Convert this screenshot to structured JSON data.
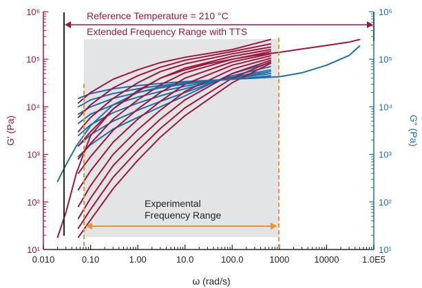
{
  "chart_data": {
    "type": "line",
    "xlabel": "ω (rad/s)",
    "ylabel_left": "G' (Pa)",
    "ylabel_right": "G\" (Pa)",
    "x_log": true,
    "y_log": true,
    "xlim": [
      0.01,
      100000
    ],
    "ylim": [
      10,
      1000000
    ],
    "x_ticks": [
      0.01,
      0.1,
      1,
      10,
      100,
      1000,
      10000,
      100000
    ],
    "x_tick_labels": [
      "0.010",
      "0.10",
      "1.00",
      "10.0",
      "100.0",
      "1000",
      "10000",
      "1.0E5"
    ],
    "y_ticks": [
      10,
      100,
      1000,
      10000,
      100000,
      1000000
    ],
    "y_tick_labels_left": [
      "10¹",
      "10²",
      "10³",
      "10⁴",
      "10⁵",
      "10⁶"
    ],
    "y_tick_labels_right": [
      "10¹",
      "10²",
      "10³",
      "10⁴",
      "10⁵",
      "10⁶"
    ],
    "annotations": {
      "reference_temp": "Reference Temperature = 210 °C",
      "extended_range": "Extended Frequency Range with TTS",
      "experimental_range_line1": "Experimental",
      "experimental_range_line2": "Frequency Range"
    },
    "extended_range_omega": [
      0.02,
      50000
    ],
    "experimental_range_omega": [
      0.055,
      650
    ],
    "colors": {
      "gprime": "#a0153e",
      "gdoubleprime": "#1f6fa8",
      "shaded": "#e3e4e6",
      "orange": "#f0922e",
      "extended_arrow": "#a0153e",
      "axis": "#222222"
    },
    "master_curves": [
      {
        "name": "G' master curve",
        "x": [
          0.02,
          0.03,
          0.05,
          0.1,
          0.3,
          1,
          3,
          10,
          30,
          100,
          300,
          1000,
          3000,
          10000,
          30000,
          50000
        ],
        "y": [
          18,
          60,
          400,
          2500,
          9000,
          22000,
          40000,
          60000,
          80000,
          100000,
          120000,
          140000,
          165000,
          195000,
          230000,
          260000
        ]
      },
      {
        "name": "G\" master curve",
        "x": [
          0.02,
          0.03,
          0.05,
          0.1,
          0.3,
          1,
          3,
          10,
          30,
          100,
          300,
          1000,
          3000,
          10000,
          30000,
          50000
        ],
        "y": [
          270,
          600,
          1500,
          4000,
          11000,
          20000,
          26000,
          31000,
          35000,
          38000,
          40000,
          43000,
          52000,
          75000,
          120000,
          190000
        ]
      }
    ],
    "gprime_isotherms": [
      {
        "x": [
          0.055,
          0.1,
          0.3,
          1,
          3,
          10,
          100,
          650
        ],
        "y": [
          12000,
          20000,
          38000,
          60000,
          85000,
          110000,
          160000,
          260000
        ]
      },
      {
        "x": [
          0.055,
          0.1,
          0.3,
          1,
          3,
          10,
          100,
          650
        ],
        "y": [
          6000,
          11000,
          25000,
          45000,
          68000,
          95000,
          145000,
          210000
        ]
      },
      {
        "x": [
          0.055,
          0.1,
          0.3,
          1,
          3,
          10,
          100,
          650
        ],
        "y": [
          3000,
          6000,
          15000,
          32000,
          55000,
          80000,
          130000,
          180000
        ]
      },
      {
        "x": [
          0.055,
          0.1,
          0.3,
          1,
          3,
          10,
          100,
          650
        ],
        "y": [
          1500,
          3000,
          9000,
          21000,
          40000,
          65000,
          115000,
          160000
        ]
      },
      {
        "x": [
          0.055,
          0.1,
          0.3,
          1,
          3,
          10,
          100,
          650
        ],
        "y": [
          800,
          1700,
          5500,
          14000,
          29000,
          52000,
          100000,
          145000
        ]
      },
      {
        "x": [
          0.055,
          0.1,
          0.3,
          1,
          3,
          10,
          100,
          650
        ],
        "y": [
          400,
          900,
          3200,
          9000,
          20000,
          40000,
          88000,
          130000
        ]
      },
      {
        "x": [
          0.055,
          0.1,
          0.3,
          1,
          3,
          10,
          100,
          650
        ],
        "y": [
          180,
          450,
          1800,
          5500,
          13000,
          30000,
          75000,
          118000
        ]
      },
      {
        "x": [
          0.055,
          0.1,
          0.3,
          1,
          3,
          10,
          100,
          650
        ],
        "y": [
          80,
          220,
          1000,
          3300,
          8500,
          21000,
          62000,
          105000
        ]
      },
      {
        "x": [
          0.055,
          0.1,
          0.3,
          1,
          3,
          10,
          100,
          650
        ],
        "y": [
          45,
          120,
          580,
          2000,
          5500,
          14000,
          50000,
          95000
        ]
      },
      {
        "x": [
          0.055,
          0.1,
          0.3,
          1,
          3,
          10,
          100,
          650
        ],
        "y": [
          28,
          70,
          330,
          1200,
          3500,
          9500,
          40000,
          88000
        ]
      },
      {
        "x": [
          0.055,
          0.1,
          0.3,
          1,
          3,
          10,
          100,
          650
        ],
        "y": [
          18,
          42,
          190,
          750,
          2300,
          6500,
          32000,
          82000
        ]
      }
    ],
    "gdoubleprime_isotherms": [
      {
        "x": [
          0.055,
          0.1,
          0.3,
          1,
          3,
          10,
          100,
          650
        ],
        "y": [
          15000,
          19000,
          24000,
          28000,
          31000,
          34000,
          38000,
          42000
        ]
      },
      {
        "x": [
          0.055,
          0.1,
          0.3,
          1,
          3,
          10,
          100,
          650
        ],
        "y": [
          10000,
          14000,
          19000,
          24000,
          28000,
          32000,
          38000,
          45000
        ]
      },
      {
        "x": [
          0.055,
          0.1,
          0.3,
          1,
          3,
          10,
          100,
          650
        ],
        "y": [
          7000,
          10000,
          15000,
          20000,
          25000,
          30000,
          40000,
          50000
        ]
      },
      {
        "x": [
          0.055,
          0.1,
          0.3,
          1,
          3,
          10,
          100,
          650
        ],
        "y": [
          4500,
          7000,
          11000,
          16000,
          21000,
          27000,
          40000,
          55000
        ]
      },
      {
        "x": [
          0.055,
          0.1,
          0.3,
          1,
          3,
          10,
          100,
          650
        ],
        "y": [
          2500,
          4200,
          7500,
          12000,
          17000,
          24000,
          42000,
          60000
        ]
      },
      {
        "x": [
          0.055,
          0.1,
          0.3,
          1,
          3,
          10,
          100,
          650
        ],
        "y": [
          1500,
          2600,
          5000,
          8500,
          13000,
          20000,
          45000,
          70000
        ]
      },
      {
        "x": [
          0.055,
          0.1,
          0.3,
          1,
          3,
          10,
          100,
          650
        ],
        "y": [
          900,
          1600,
          3400,
          6000,
          10000,
          17000,
          50000,
          85000
        ]
      }
    ]
  }
}
